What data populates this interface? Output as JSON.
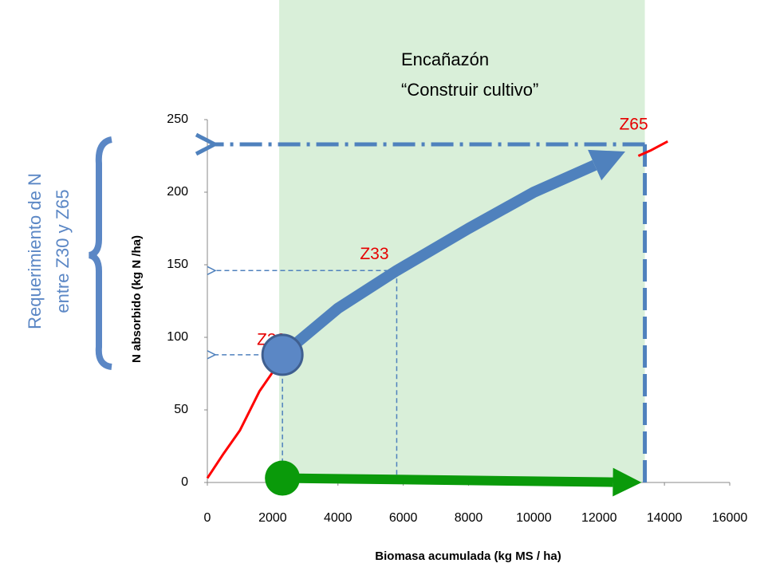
{
  "chart_data": {
    "type": "line",
    "xlabel": "Biomasa acumulada  (kg MS / ha)",
    "ylabel": "N absorbido  (kg N /ha)",
    "xlim": [
      0,
      16000
    ],
    "xticks": [
      0,
      2000,
      4000,
      6000,
      8000,
      10000,
      12000,
      14000,
      16000
    ],
    "ylim": [
      0,
      250
    ],
    "yticks": [
      0,
      50,
      100,
      150,
      200,
      250
    ],
    "phase": {
      "text": [
        "Encañazón",
        "“Construir cultivo”"
      ],
      "xlim": [
        2200,
        13400
      ],
      "color": "#d9efd9"
    },
    "note": [
      "Requerimiento de N",
      "entre Z30 y Z65"
    ],
    "series": [
      {
        "color": "#ff0000",
        "width": 3,
        "x": [
          0,
          500,
          1000,
          1600,
          2000,
          2300
        ],
        "values": [
          3,
          20,
          36,
          63,
          76,
          88
        ]
      },
      {
        "color": "#ff0000",
        "width": 3,
        "x": [
          13200,
          13600,
          14100
        ],
        "values": [
          225,
          229,
          235
        ]
      },
      {
        "color": "#4f81bd",
        "width": 14,
        "arrow": true,
        "start_marker": "#5b87c5",
        "x": [
          2300,
          4000,
          5800,
          8000,
          10000,
          12800
        ],
        "values": [
          88,
          120,
          146,
          175,
          200,
          228
        ]
      },
      {
        "color": "#0a9a0a",
        "width": 12,
        "arrow": true,
        "start_marker": "#0a9a0a",
        "x": [
          2300,
          13300
        ],
        "values": [
          3,
          0
        ]
      }
    ],
    "guides": [
      {
        "label": "Z30",
        "x": 2300,
        "y": 88,
        "width": 1.5
      },
      {
        "label": "Z33",
        "x": 5800,
        "y": 146,
        "width": 1.5
      },
      {
        "label": "Z65",
        "x": 13400,
        "y": 233,
        "width": 5
      }
    ],
    "guide_color": "#4f81bd"
  }
}
